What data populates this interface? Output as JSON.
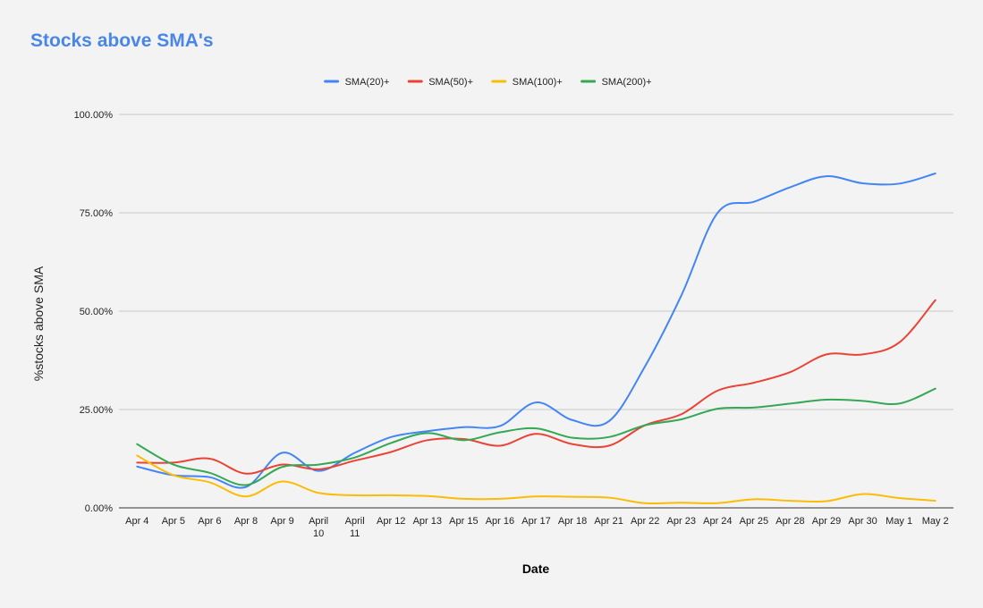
{
  "chart_data": {
    "type": "line",
    "title": "Stocks above SMA's",
    "xlabel": "Date",
    "ylabel": "%stocks above SMA",
    "ylim": [
      0,
      100
    ],
    "y_ticks": [
      "0.00%",
      "25.00%",
      "50.00%",
      "75.00%",
      "100.00%"
    ],
    "grid": true,
    "legend_position": "top",
    "categories": [
      [
        "Apr 4"
      ],
      [
        "Apr 5"
      ],
      [
        "Apr 6"
      ],
      [
        "Apr 8"
      ],
      [
        "Apr 9"
      ],
      [
        "April",
        "10"
      ],
      [
        "April",
        "11"
      ],
      [
        "Apr 12"
      ],
      [
        "Apr 13"
      ],
      [
        "Apr 15"
      ],
      [
        "Apr 16"
      ],
      [
        "Apr 17"
      ],
      [
        "Apr 18"
      ],
      [
        "Apr 21"
      ],
      [
        "Apr 22"
      ],
      [
        "Apr 23"
      ],
      [
        "Apr 24"
      ],
      [
        "Apr 25"
      ],
      [
        "Apr 28"
      ],
      [
        "Apr 29"
      ],
      [
        "Apr 30"
      ],
      [
        "May 1"
      ],
      [
        "May 2"
      ]
    ],
    "series": [
      {
        "name": "SMA(20)+",
        "color": "#4285f4",
        "values": [
          10.5,
          8.3,
          7.8,
          5.3,
          14.0,
          9.4,
          14.0,
          18.0,
          19.5,
          20.5,
          20.8,
          26.8,
          22.3,
          22.0,
          36.0,
          54.0,
          75.0,
          77.8,
          81.5,
          84.3,
          82.5,
          82.4,
          85.0
        ]
      },
      {
        "name": "SMA(50)+",
        "color": "#ea4335",
        "values": [
          11.5,
          11.5,
          12.5,
          8.7,
          11.0,
          9.8,
          12.0,
          14.2,
          17.2,
          17.5,
          15.8,
          18.8,
          16.2,
          15.8,
          21.0,
          23.8,
          29.8,
          31.8,
          34.5,
          39.0,
          39.0,
          42.0,
          52.8
        ]
      },
      {
        "name": "SMA(100)+",
        "color": "#fbbc04",
        "values": [
          13.3,
          8.3,
          6.5,
          2.9,
          6.7,
          3.8,
          3.2,
          3.2,
          3.0,
          2.3,
          2.3,
          2.9,
          2.8,
          2.6,
          1.2,
          1.3,
          1.2,
          2.2,
          1.8,
          1.7,
          3.5,
          2.5,
          1.8
        ]
      },
      {
        "name": "SMA(200)+",
        "color": "#34a853",
        "values": [
          16.2,
          11.0,
          8.9,
          5.8,
          10.4,
          11.0,
          12.8,
          16.5,
          19.0,
          17.2,
          19.2,
          20.2,
          17.8,
          18.0,
          21.0,
          22.5,
          25.2,
          25.5,
          26.5,
          27.5,
          27.2,
          26.5,
          30.3
        ]
      }
    ]
  }
}
